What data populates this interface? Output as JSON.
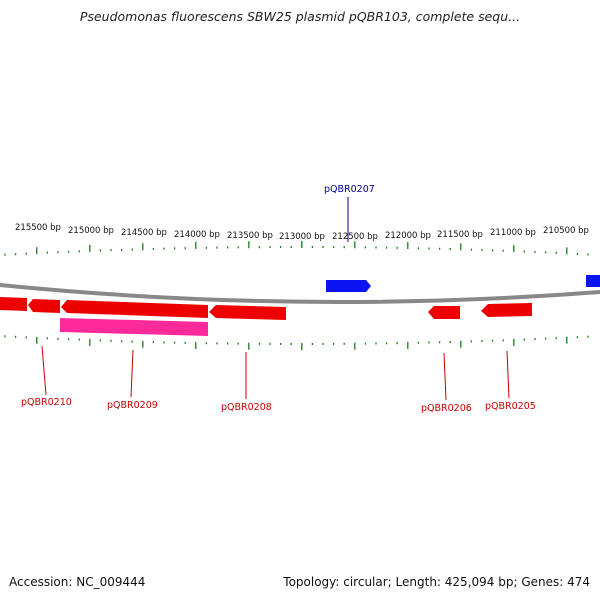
{
  "title": "Pseudomonas fluorescens SBW25 plasmid pQBR103, complete sequ...",
  "footer": {
    "accession": "Accession: NC_009444",
    "summary": "Topology: circular; Length: 425,094 bp; Genes: 474"
  },
  "colors": {
    "forward_gene": "#0a14f0",
    "reverse_gene": "#ee0000",
    "reverse_gene_alt": "#ff2a9a",
    "label_forward": "#000099",
    "label_reverse": "#cc0000",
    "tick": "#1f7a1f",
    "backbone": "#888888"
  },
  "scale_labels": [
    "215500 bp",
    "215000 bp",
    "214500 bp",
    "214000 bp",
    "213500 bp",
    "213000 bp",
    "212500 bp",
    "212000 bp",
    "211500 bp",
    "211000 bp",
    "210500 bp"
  ],
  "gene_labels": {
    "pQBR0207": "pQBR0207",
    "pQBR0210": "pQBR0210",
    "pQBR0209": "pQBR0209",
    "pQBR0208": "pQBR0208",
    "pQBR0206": "pQBR0206",
    "pQBR0205": "pQBR0205"
  }
}
